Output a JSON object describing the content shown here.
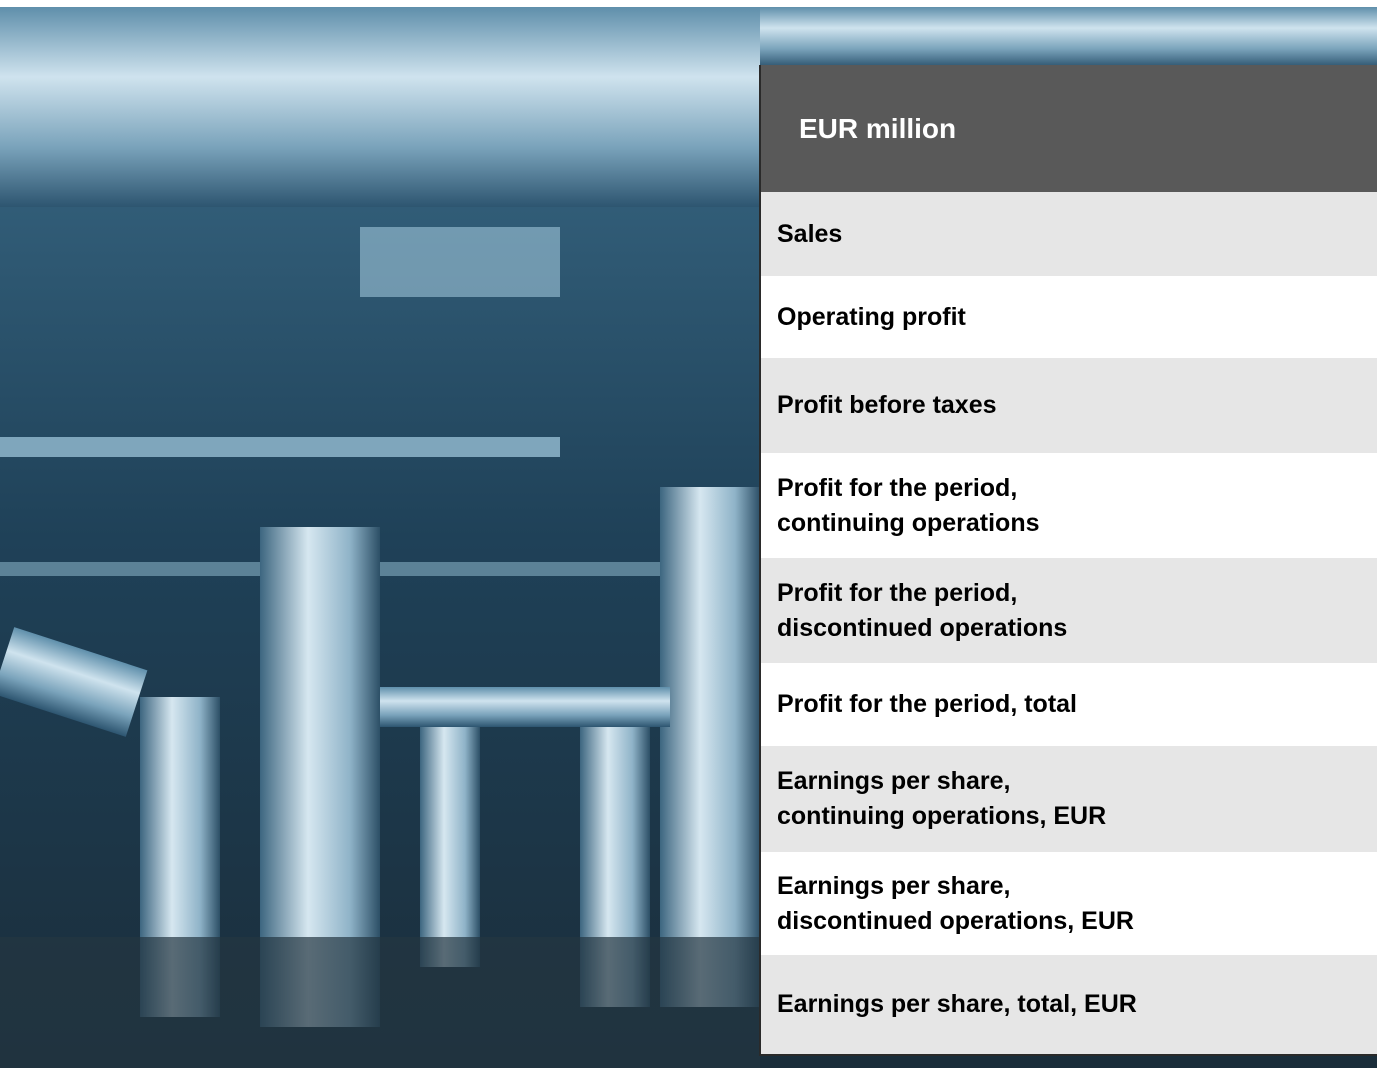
{
  "table": {
    "header": "EUR million",
    "rows": [
      "Sales",
      "Operating profit",
      "Profit before taxes",
      "Profit for the period,\ncontinuing operations",
      "Profit for the period,\ndiscontinued operations",
      "Profit for the period, total",
      "Earnings per share,\ncontinuing operations, EUR",
      "Earnings per share,\ndiscontinued operations, EUR",
      "Earnings per share, total, EUR"
    ]
  }
}
